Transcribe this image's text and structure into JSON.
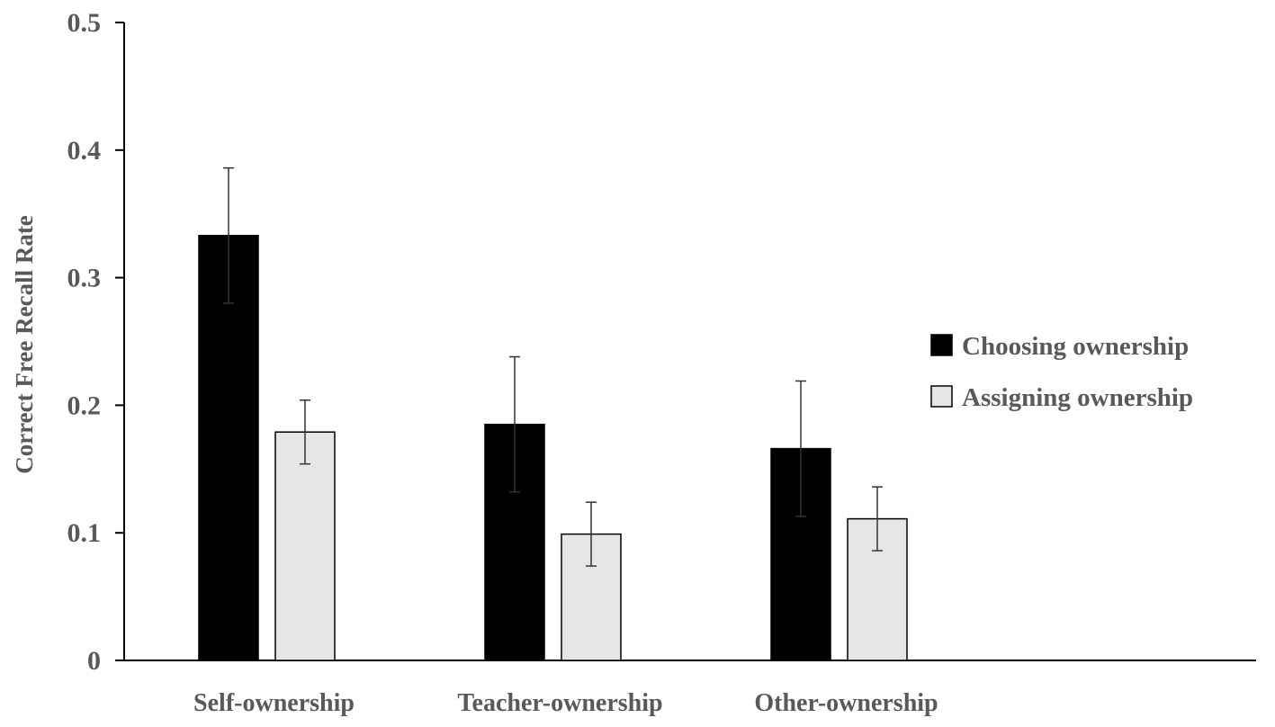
{
  "chart_data": {
    "type": "bar",
    "categories": [
      "Self-ownership",
      "Teacher-ownership",
      "Other-ownership"
    ],
    "series": [
      {
        "name": "Choosing ownership",
        "color": "#000000",
        "values": [
          0.333,
          0.185,
          0.166
        ],
        "error": [
          0.053,
          0.053,
          0.053
        ]
      },
      {
        "name": "Assigning ownership",
        "color": "#e6e6e6",
        "values": [
          0.179,
          0.099,
          0.111
        ],
        "error": [
          0.025,
          0.025,
          0.025
        ]
      }
    ],
    "ylabel": "Correct Free Recall Rate",
    "xlabel": "",
    "ylim": [
      0,
      0.5
    ],
    "yticks": [
      {
        "value": 0,
        "label": "0"
      },
      {
        "value": 0.1,
        "label": "0.1"
      },
      {
        "value": 0.2,
        "label": "0.2"
      },
      {
        "value": 0.3,
        "label": "0.3"
      },
      {
        "value": 0.4,
        "label": "0.4"
      },
      {
        "value": 0.5,
        "label": "0.5"
      }
    ],
    "grid": false,
    "legend_position": "right"
  }
}
